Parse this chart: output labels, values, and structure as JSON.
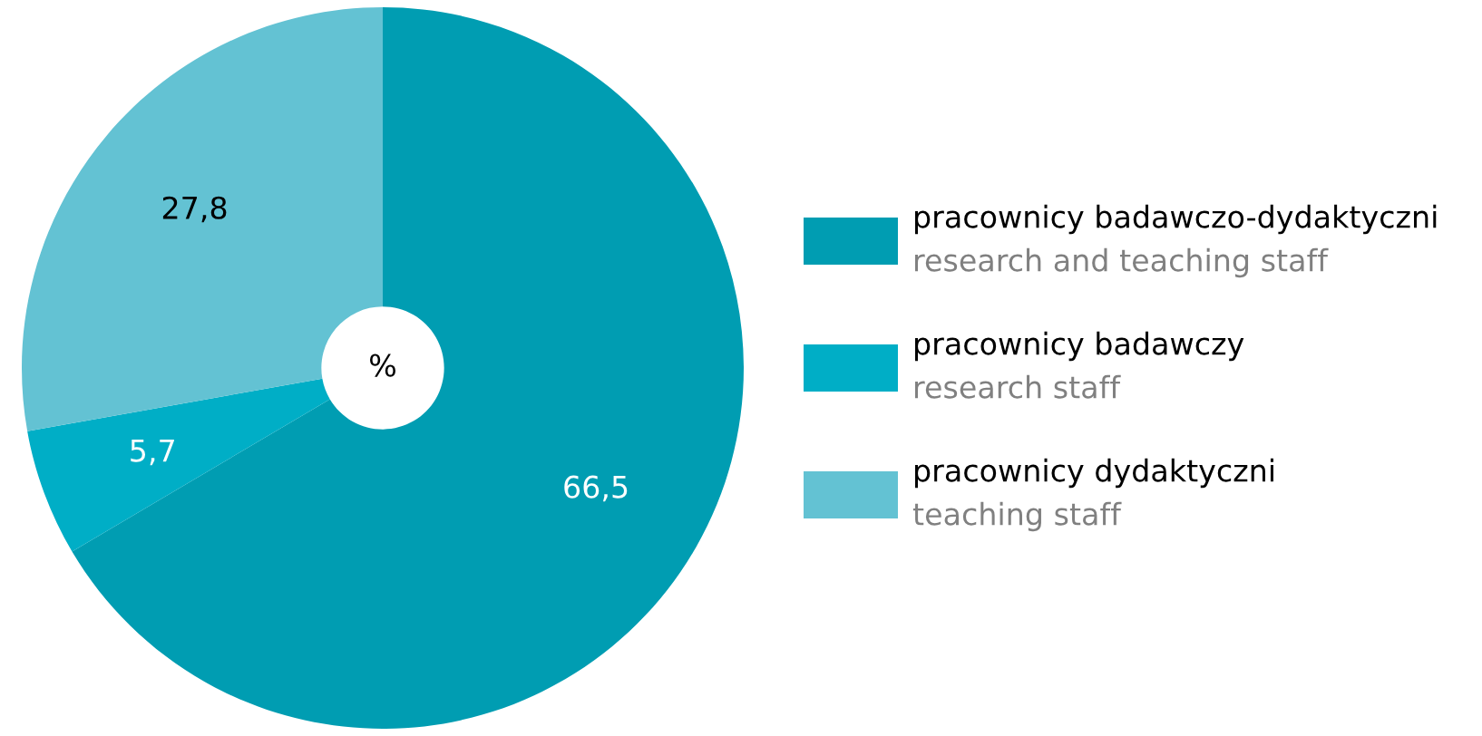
{
  "chart_data": {
    "type": "donut",
    "categories": [
      "pracownicy badawczo-dydaktyczni\nresearch and teaching staff",
      "pracownicy badawczy\nresearch staff",
      "pracownicy dydaktyczni\nteaching staff"
    ],
    "values": [
      66.5,
      5.7,
      27.8
    ],
    "value_labels": [
      "66,5",
      "5,7",
      "27,8"
    ],
    "colors": [
      "#009db2",
      "#00aec6",
      "#63c2d3"
    ],
    "annotations": [
      "%"
    ],
    "legend": "right"
  }
}
